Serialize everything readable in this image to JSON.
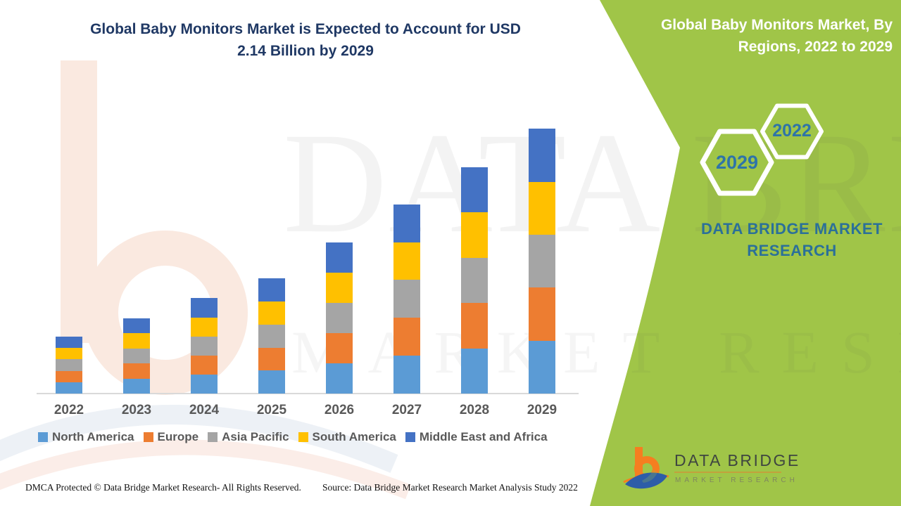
{
  "header": {
    "title_line1": "Global Baby Monitors Market is Expected to Account for USD",
    "title_line2": "2.14 Billion by 2029"
  },
  "side_panel": {
    "panel_color": "#A0C548",
    "title_line1": "Global Baby Monitors Market, By",
    "title_line2": "Regions, 2022 to 2029",
    "hexagon_start_year": "2022",
    "hexagon_end_year": "2029",
    "brand_line1": "DATA BRIDGE MARKET",
    "brand_line2": "RESEARCH"
  },
  "logo": {
    "name": "DATA BRIDGE",
    "subtitle": "MARKET RESEARCH"
  },
  "watermark": {
    "line1": "DATA BRIDGE",
    "line2": "MARKET RESEARCH"
  },
  "footer": {
    "left": "DMCA Protected © Data Bridge Market Research- All Rights Reserved.",
    "right": "Source: Data Bridge Market Research Market Analysis Study 2022"
  },
  "chart_data": {
    "type": "bar",
    "stacked": true,
    "title": "Global Baby Monitors Market is Expected to Account for USD 2.14 Billion by 2029",
    "unit": "USD Billion",
    "categories": [
      "2022",
      "2023",
      "2024",
      "2025",
      "2026",
      "2027",
      "2028",
      "2029"
    ],
    "totals_usd_billion": [
      0.46,
      0.61,
      0.77,
      0.93,
      1.22,
      1.53,
      1.83,
      2.14
    ],
    "series": [
      {
        "name": "North America",
        "color": "#5B9BD5",
        "values": [
          0.092,
          0.122,
          0.154,
          0.186,
          0.244,
          0.306,
          0.366,
          0.428
        ]
      },
      {
        "name": "Europe",
        "color": "#ED7D31",
        "values": [
          0.092,
          0.122,
          0.154,
          0.186,
          0.244,
          0.306,
          0.366,
          0.428
        ]
      },
      {
        "name": "Asia Pacific",
        "color": "#A5A5A5",
        "values": [
          0.092,
          0.122,
          0.154,
          0.186,
          0.244,
          0.306,
          0.366,
          0.428
        ]
      },
      {
        "name": "South America",
        "color": "#FFC000",
        "values": [
          0.092,
          0.122,
          0.154,
          0.186,
          0.244,
          0.306,
          0.366,
          0.428
        ]
      },
      {
        "name": "Middle East and Africa",
        "color": "#4472C4",
        "values": [
          0.092,
          0.122,
          0.154,
          0.186,
          0.244,
          0.306,
          0.366,
          0.428
        ]
      }
    ],
    "stack_order": "bottom_to_top_follows_series_order",
    "legend_position": "bottom",
    "gridlines": false,
    "y_axis": {
      "visible": false,
      "implied_range": [
        0,
        2.25
      ]
    },
    "x_axis": {
      "labels_visible": true
    }
  }
}
